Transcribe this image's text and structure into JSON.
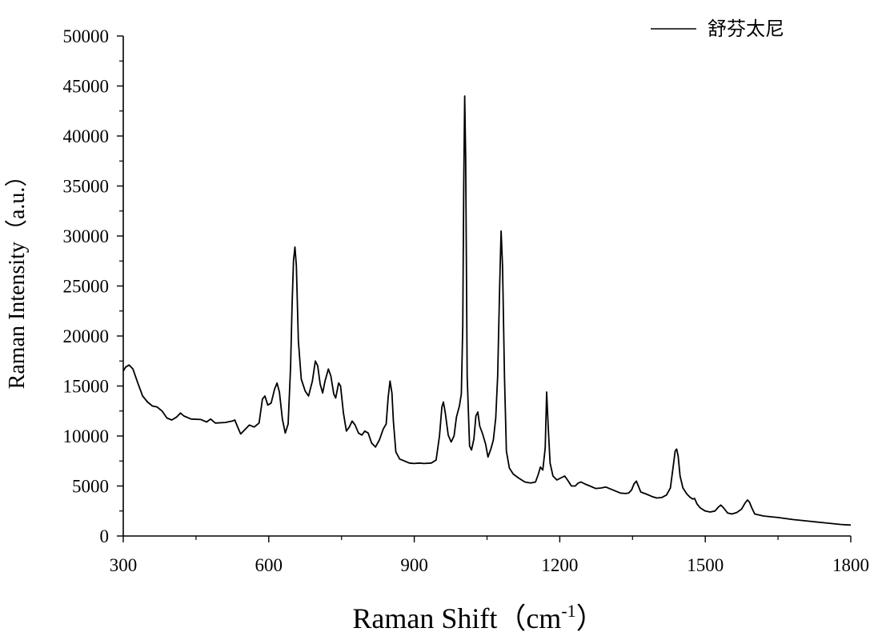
{
  "chart_data": {
    "type": "line",
    "title": "",
    "xlabel": "Raman Shift（cm",
    "xlabel_sup": "-1",
    "xlabel_suffix": "）",
    "ylabel": "Raman Intensity（a.u.）",
    "xlim": [
      300,
      1800
    ],
    "ylim": [
      0,
      50000
    ],
    "x_ticks": [
      300,
      600,
      900,
      1200,
      1500,
      1800
    ],
    "y_ticks": [
      0,
      5000,
      10000,
      15000,
      20000,
      25000,
      30000,
      35000,
      40000,
      45000,
      50000
    ],
    "grid": false,
    "legend_position": "top-right",
    "series": [
      {
        "name": "舒芬太尼",
        "color": "#000000",
        "points": [
          [
            300,
            16500
          ],
          [
            305,
            16900
          ],
          [
            312,
            17100
          ],
          [
            320,
            16700
          ],
          [
            330,
            15300
          ],
          [
            340,
            14000
          ],
          [
            350,
            13400
          ],
          [
            360,
            13000
          ],
          [
            370,
            12900
          ],
          [
            380,
            12500
          ],
          [
            390,
            11800
          ],
          [
            400,
            11600
          ],
          [
            410,
            11900
          ],
          [
            418,
            12300
          ],
          [
            425,
            12000
          ],
          [
            440,
            11700
          ],
          [
            460,
            11650
          ],
          [
            472,
            11400
          ],
          [
            480,
            11700
          ],
          [
            490,
            11300
          ],
          [
            510,
            11350
          ],
          [
            525,
            11500
          ],
          [
            530,
            11600
          ],
          [
            535,
            11000
          ],
          [
            542,
            10200
          ],
          [
            550,
            10600
          ],
          [
            560,
            11100
          ],
          [
            570,
            10900
          ],
          [
            580,
            11300
          ],
          [
            587,
            13700
          ],
          [
            592,
            14000
          ],
          [
            598,
            13100
          ],
          [
            605,
            13300
          ],
          [
            612,
            14700
          ],
          [
            617,
            15300
          ],
          [
            622,
            14400
          ],
          [
            628,
            11700
          ],
          [
            634,
            10300
          ],
          [
            640,
            11200
          ],
          [
            645,
            17000
          ],
          [
            648,
            23000
          ],
          [
            651,
            27500
          ],
          [
            654,
            28900
          ],
          [
            657,
            27000
          ],
          [
            661,
            19500
          ],
          [
            667,
            15700
          ],
          [
            675,
            14500
          ],
          [
            682,
            14000
          ],
          [
            690,
            15500
          ],
          [
            696,
            17500
          ],
          [
            701,
            17000
          ],
          [
            706,
            15200
          ],
          [
            711,
            14300
          ],
          [
            716,
            15500
          ],
          [
            723,
            16700
          ],
          [
            728,
            16000
          ],
          [
            734,
            14200
          ],
          [
            738,
            13800
          ],
          [
            744,
            15300
          ],
          [
            748,
            15000
          ],
          [
            754,
            12300
          ],
          [
            760,
            10500
          ],
          [
            766,
            10900
          ],
          [
            772,
            11500
          ],
          [
            778,
            11100
          ],
          [
            785,
            10300
          ],
          [
            792,
            10100
          ],
          [
            798,
            10500
          ],
          [
            805,
            10300
          ],
          [
            812,
            9300
          ],
          [
            820,
            8900
          ],
          [
            828,
            9600
          ],
          [
            836,
            10700
          ],
          [
            842,
            11200
          ],
          [
            846,
            13800
          ],
          [
            850,
            15500
          ],
          [
            854,
            14300
          ],
          [
            857,
            11500
          ],
          [
            862,
            8400
          ],
          [
            870,
            7700
          ],
          [
            880,
            7500
          ],
          [
            890,
            7300
          ],
          [
            900,
            7250
          ],
          [
            910,
            7300
          ],
          [
            920,
            7250
          ],
          [
            935,
            7300
          ],
          [
            945,
            7600
          ],
          [
            952,
            10000
          ],
          [
            957,
            12900
          ],
          [
            960,
            13400
          ],
          [
            964,
            12300
          ],
          [
            970,
            10100
          ],
          [
            976,
            9400
          ],
          [
            982,
            10000
          ],
          [
            987,
            11900
          ],
          [
            993,
            13000
          ],
          [
            997,
            14200
          ],
          [
            1000,
            21000
          ],
          [
            1002,
            35000
          ],
          [
            1004,
            44000
          ],
          [
            1006,
            38000
          ],
          [
            1009,
            16000
          ],
          [
            1014,
            9000
          ],
          [
            1018,
            8600
          ],
          [
            1023,
            9700
          ],
          [
            1027,
            12000
          ],
          [
            1031,
            12400
          ],
          [
            1035,
            11000
          ],
          [
            1041,
            10200
          ],
          [
            1047,
            9200
          ],
          [
            1052,
            7900
          ],
          [
            1058,
            8700
          ],
          [
            1063,
            9600
          ],
          [
            1068,
            11800
          ],
          [
            1072,
            16000
          ],
          [
            1076,
            25000
          ],
          [
            1079,
            30500
          ],
          [
            1082,
            27000
          ],
          [
            1086,
            16000
          ],
          [
            1090,
            8500
          ],
          [
            1096,
            6800
          ],
          [
            1104,
            6200
          ],
          [
            1115,
            5800
          ],
          [
            1128,
            5400
          ],
          [
            1140,
            5300
          ],
          [
            1150,
            5400
          ],
          [
            1156,
            6200
          ],
          [
            1160,
            6900
          ],
          [
            1165,
            6600
          ],
          [
            1170,
            8800
          ],
          [
            1173,
            14400
          ],
          [
            1176,
            11000
          ],
          [
            1180,
            7300
          ],
          [
            1186,
            6000
          ],
          [
            1194,
            5600
          ],
          [
            1202,
            5800
          ],
          [
            1210,
            6000
          ],
          [
            1216,
            5600
          ],
          [
            1224,
            5000
          ],
          [
            1232,
            5000
          ],
          [
            1238,
            5300
          ],
          [
            1244,
            5400
          ],
          [
            1252,
            5200
          ],
          [
            1262,
            5000
          ],
          [
            1274,
            4750
          ],
          [
            1285,
            4800
          ],
          [
            1295,
            4900
          ],
          [
            1305,
            4700
          ],
          [
            1315,
            4500
          ],
          [
            1325,
            4300
          ],
          [
            1335,
            4250
          ],
          [
            1342,
            4300
          ],
          [
            1348,
            4600
          ],
          [
            1353,
            5200
          ],
          [
            1358,
            5500
          ],
          [
            1362,
            5000
          ],
          [
            1367,
            4400
          ],
          [
            1378,
            4200
          ],
          [
            1390,
            3950
          ],
          [
            1400,
            3800
          ],
          [
            1410,
            3850
          ],
          [
            1420,
            4100
          ],
          [
            1428,
            4800
          ],
          [
            1434,
            7000
          ],
          [
            1438,
            8500
          ],
          [
            1441,
            8700
          ],
          [
            1444,
            8000
          ],
          [
            1448,
            6000
          ],
          [
            1454,
            4800
          ],
          [
            1462,
            4200
          ],
          [
            1468,
            3900
          ],
          [
            1474,
            3700
          ],
          [
            1478,
            3750
          ],
          [
            1483,
            3200
          ],
          [
            1490,
            2800
          ],
          [
            1500,
            2500
          ],
          [
            1510,
            2400
          ],
          [
            1520,
            2500
          ],
          [
            1527,
            2900
          ],
          [
            1532,
            3100
          ],
          [
            1538,
            2800
          ],
          [
            1546,
            2300
          ],
          [
            1555,
            2200
          ],
          [
            1565,
            2350
          ],
          [
            1575,
            2700
          ],
          [
            1582,
            3300
          ],
          [
            1587,
            3600
          ],
          [
            1591,
            3400
          ],
          [
            1596,
            2800
          ],
          [
            1602,
            2200
          ],
          [
            1620,
            2000
          ],
          [
            1650,
            1850
          ],
          [
            1680,
            1650
          ],
          [
            1700,
            1550
          ],
          [
            1720,
            1450
          ],
          [
            1740,
            1350
          ],
          [
            1760,
            1250
          ],
          [
            1780,
            1150
          ],
          [
            1800,
            1100
          ]
        ]
      }
    ]
  }
}
